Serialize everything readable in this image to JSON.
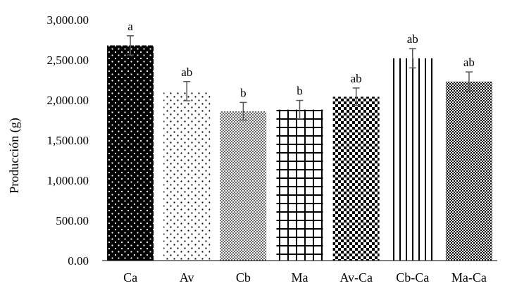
{
  "chart_data": {
    "type": "bar",
    "title": "",
    "xlabel": "",
    "ylabel": "Producción (g)",
    "ylim": [
      0,
      3000
    ],
    "yticks": [
      0,
      500,
      1000,
      1500,
      2000,
      2500,
      3000
    ],
    "ytick_labels": [
      "0.00",
      "500.00",
      "1,000.00",
      "1,500.00",
      "2,000.00",
      "2,500.00",
      "3,000.00"
    ],
    "grid": false,
    "legend": "none",
    "categories": [
      "Ca",
      "Av",
      "Cb",
      "Ma",
      "Av-Ca",
      "Cb-Ca",
      "Ma-Ca"
    ],
    "values": [
      2680,
      2110,
      1860,
      1880,
      2040,
      2520,
      2230
    ],
    "error": [
      120,
      120,
      110,
      115,
      110,
      120,
      120
    ],
    "significance_labels": [
      "a",
      "ab",
      "b",
      "b",
      "ab",
      "ab",
      "ab"
    ],
    "fill_patterns": [
      "black-white-dots",
      "sparse-black-dots",
      "fine-dots",
      "grid-lines",
      "checkerboard",
      "vertical-lines",
      "small-checker"
    ],
    "colors": {
      "ink": "#000000",
      "paper": "#ffffff",
      "errorbar": "#555555"
    }
  }
}
